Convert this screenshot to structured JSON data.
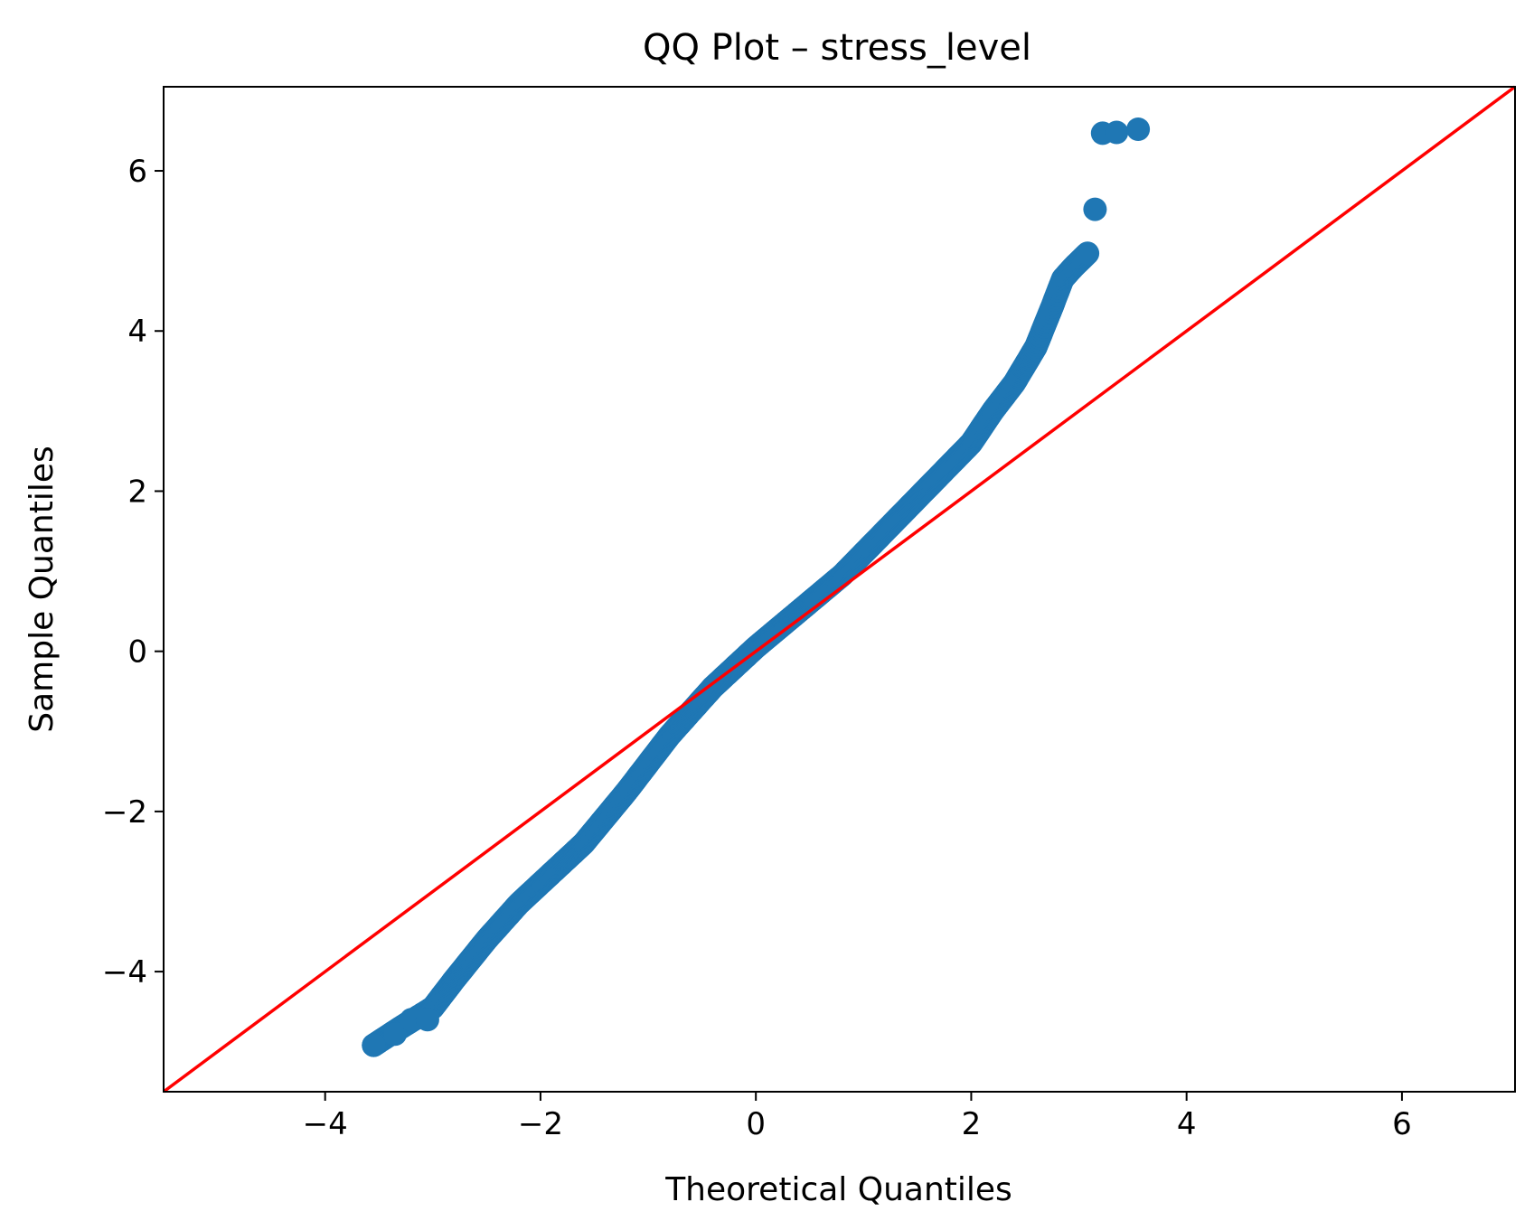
{
  "chart_data": {
    "type": "scatter",
    "title": "QQ Plot – stress_level",
    "xlabel": "Theoretical Quantiles",
    "ylabel": "Sample Quantiles",
    "xlim": [
      -5.5,
      7.05
    ],
    "ylim": [
      -5.5,
      7.05
    ],
    "x_ticks": [
      -4,
      -2,
      0,
      2,
      4,
      6
    ],
    "y_ticks": [
      -4,
      -2,
      0,
      2,
      4,
      6
    ],
    "x_tick_labels": [
      "−4",
      "−2",
      "0",
      "2",
      "4",
      "6"
    ],
    "y_tick_labels": [
      "−4",
      "−2",
      "0",
      "2",
      "4",
      "6"
    ],
    "grid": false,
    "marker_color": "#1f77b4",
    "reference_line": {
      "color": "#ff0000",
      "slope": 1,
      "intercept": 0
    },
    "quantile_curve": [
      [
        -3.55,
        -4.92
      ],
      [
        -3.3,
        -4.7
      ],
      [
        -3.0,
        -4.45
      ],
      [
        -2.8,
        -4.1
      ],
      [
        -2.5,
        -3.6
      ],
      [
        -2.2,
        -3.15
      ],
      [
        -2.0,
        -2.9
      ],
      [
        -1.6,
        -2.4
      ],
      [
        -1.2,
        -1.75
      ],
      [
        -0.8,
        -1.05
      ],
      [
        -0.4,
        -0.45
      ],
      [
        0.0,
        0.05
      ],
      [
        0.4,
        0.5
      ],
      [
        0.8,
        0.95
      ],
      [
        1.2,
        1.5
      ],
      [
        1.6,
        2.05
      ],
      [
        2.0,
        2.6
      ],
      [
        2.2,
        3.0
      ],
      [
        2.4,
        3.35
      ],
      [
        2.6,
        3.8
      ],
      [
        2.75,
        4.3
      ],
      [
        2.85,
        4.65
      ],
      [
        2.95,
        4.8
      ],
      [
        3.08,
        4.97
      ]
    ],
    "points": [
      {
        "x": -3.55,
        "y": -4.92
      },
      {
        "x": -3.35,
        "y": -4.78
      },
      {
        "x": -3.2,
        "y": -4.6
      },
      {
        "x": -3.05,
        "y": -4.6
      },
      {
        "x": 3.15,
        "y": 5.52
      },
      {
        "x": 3.22,
        "y": 6.47
      },
      {
        "x": 3.35,
        "y": 6.48
      },
      {
        "x": 3.55,
        "y": 6.52
      }
    ]
  }
}
